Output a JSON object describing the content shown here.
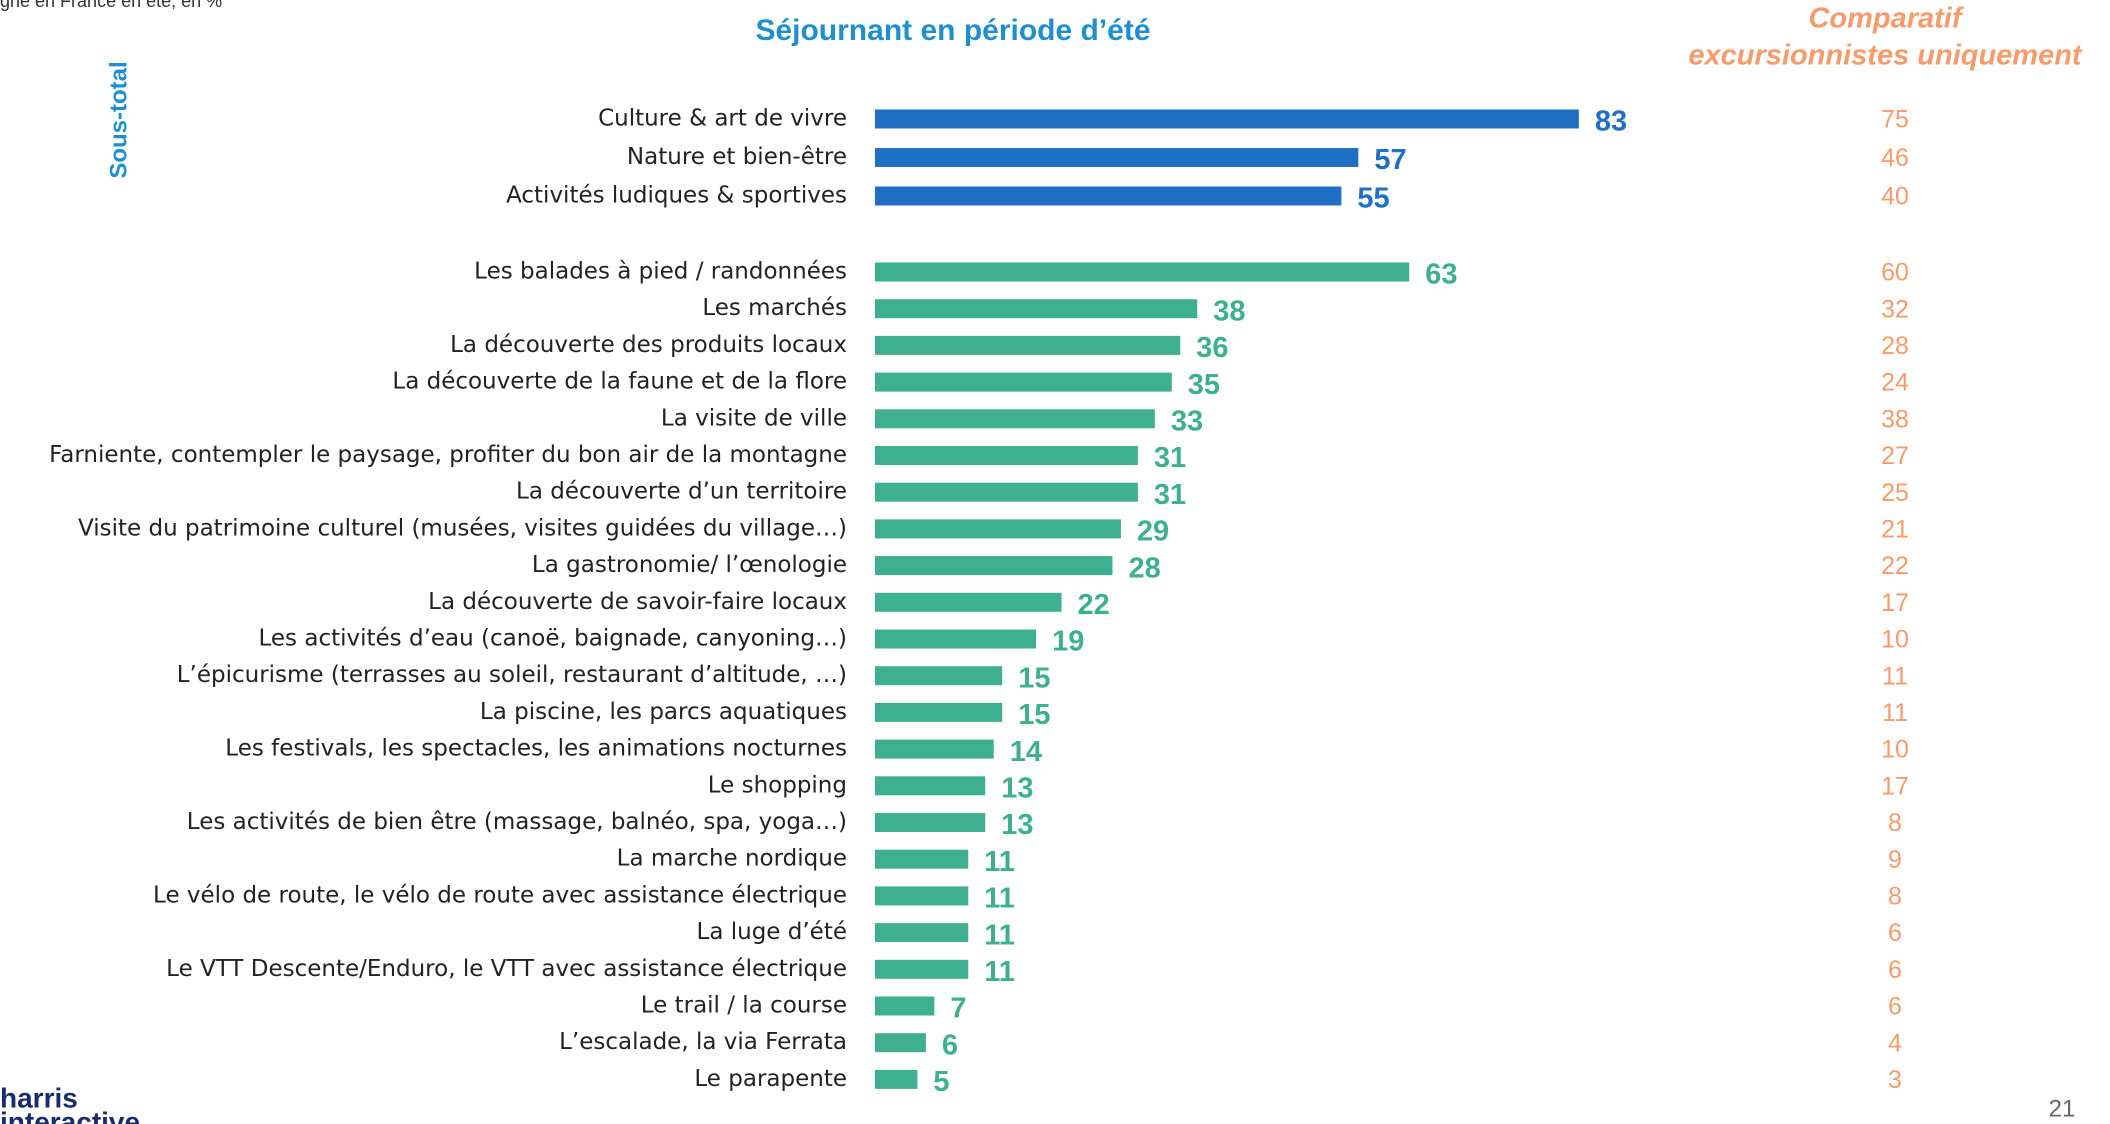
{
  "chart_data": {
    "type": "bar",
    "orientation": "horizontal",
    "header_fragment": "gne en France en été, en %",
    "title": "Séjournant en période d’été",
    "comparison_title": [
      "Comparatif",
      "excursionnistes uniquement"
    ],
    "subtotal_label": "Sous-total",
    "categories": [
      "Culture & art de vivre",
      "Nature et bien-être",
      "Activités ludiques & sportives",
      "Les balades à pied / randonnées",
      "Les marchés",
      "La découverte des produits locaux",
      "La découverte de la faune et de la flore",
      "La visite de ville",
      "Farniente, contempler le paysage, profiter du bon air de la montagne",
      "La découverte d’un territoire",
      "Visite du patrimoine culturel (musées, visites guidées du village…)",
      "La gastronomie/ l’œnologie",
      "La découverte de savoir-faire locaux",
      "Les activités d’eau (canoë, baignade, canyoning…)",
      "L’épicurisme (terrasses au soleil, restaurant d’altitude, …)",
      "La piscine, les parcs aquatiques",
      "Les festivals, les spectacles, les animations nocturnes",
      "Le shopping",
      "Les activités de bien être (massage, balnéo, spa, yoga…)",
      "La marche nordique",
      "Le vélo de route, le vélo de route avec assistance électrique",
      "La luge d’été",
      "Le VTT Descente/Enduro, le VTT avec assistance électrique",
      "Le trail / la course",
      "L’escalade, la via Ferrata",
      "Le parapente"
    ],
    "values": [
      83,
      57,
      55,
      63,
      38,
      36,
      35,
      33,
      31,
      31,
      29,
      28,
      22,
      19,
      15,
      15,
      14,
      13,
      13,
      11,
      11,
      11,
      11,
      7,
      6,
      5
    ],
    "comparison": [
      75,
      46,
      40,
      60,
      32,
      28,
      24,
      38,
      27,
      25,
      21,
      22,
      17,
      10,
      11,
      11,
      10,
      17,
      8,
      9,
      8,
      6,
      6,
      6,
      4,
      3
    ],
    "bar_colors": [
      "#1f6fc5",
      "#1f6fc5",
      "#1f6fc5",
      "#3fb08f",
      "#3fb08f",
      "#3fb08f",
      "#3fb08f",
      "#3fb08f",
      "#3fb08f",
      "#3fb08f",
      "#3fb08f",
      "#3fb08f",
      "#3fb08f",
      "#3fb08f",
      "#3fb08f",
      "#3fb08f",
      "#3fb08f",
      "#3fb08f",
      "#3fb08f",
      "#3fb08f",
      "#3fb08f",
      "#3fb08f",
      "#3fb08f",
      "#3fb08f",
      "#3fb08f",
      "#3fb08f"
    ],
    "comparison_color": "#f59b6c",
    "xlim": [
      0,
      100
    ]
  },
  "footer": {
    "logo": [
      "harris",
      "interactive"
    ],
    "page_number": "21"
  }
}
